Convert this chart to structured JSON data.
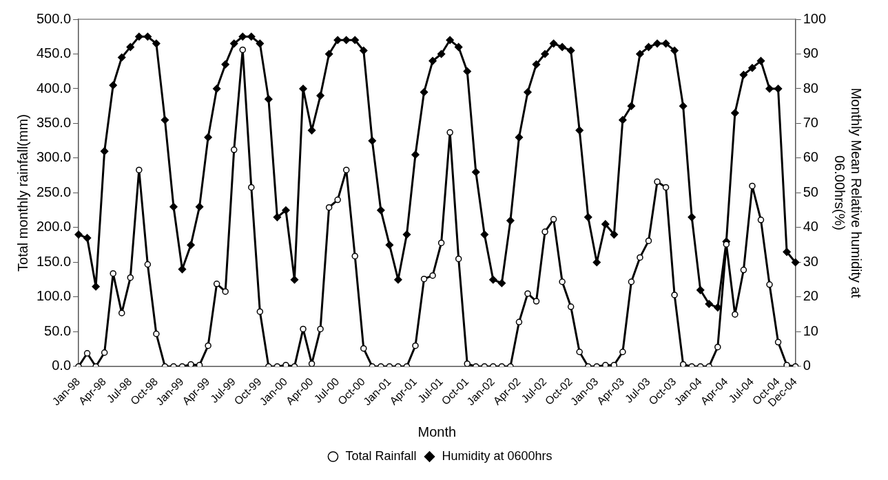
{
  "chart_data": {
    "type": "line",
    "xlabel": "Month",
    "ylabel": "Total monthly rainfall(mm)",
    "y2label": "Monthly Mean Relative humidity at\n06.00hrs(%)",
    "categories": [
      "Jan-98",
      null,
      null,
      "Apr-98",
      null,
      null,
      "Jul-98",
      null,
      null,
      "Oct-98",
      null,
      null,
      "Jan-99",
      null,
      null,
      "Apr-99",
      null,
      null,
      "Jul-99",
      null,
      null,
      "Oct-99",
      null,
      null,
      "Jan-00",
      null,
      null,
      "Apr-00",
      null,
      null,
      "Jul-00",
      null,
      null,
      "Oct-00",
      null,
      null,
      "Jan-01",
      null,
      null,
      "Apr-01",
      null,
      null,
      "Jul-01",
      null,
      null,
      "Oct-01",
      null,
      null,
      "Jan-02",
      null,
      null,
      "Apr-02",
      null,
      null,
      "Jul-02",
      null,
      null,
      "Oct-02",
      null,
      null,
      "Jan-03",
      null,
      null,
      "Apr-03",
      null,
      null,
      "Jul-03",
      null,
      null,
      "Oct-03",
      null,
      null,
      "Jan-04",
      null,
      null,
      "Apr-04",
      null,
      null,
      "Jul-04",
      null,
      null,
      "Oct-04",
      null,
      "Dec-04"
    ],
    "series": [
      {
        "name": "Total Rainfall",
        "color": "#000000",
        "marker": "circle",
        "values": [
          0,
          19,
          0,
          20,
          134,
          77,
          128,
          283,
          147,
          47,
          0,
          0,
          0,
          3,
          2,
          30,
          119,
          108,
          312,
          456,
          258,
          79,
          0,
          0,
          2,
          0,
          54,
          4,
          54,
          229,
          240,
          283,
          159,
          26,
          0,
          0,
          0,
          0,
          0,
          30,
          126,
          131,
          178,
          337,
          155,
          4,
          0,
          0,
          0,
          0,
          0,
          64,
          105,
          94,
          194,
          212,
          122,
          86,
          21,
          0,
          0,
          2,
          2,
          21,
          122,
          157,
          181,
          266,
          258,
          103,
          3,
          0,
          0,
          0,
          28,
          176,
          75,
          139,
          260,
          211,
          118,
          35,
          2,
          0
        ]
      },
      {
        "name": "Humidity at 0600hrs",
        "color": "#000000",
        "marker": "diamond",
        "axis": "y2",
        "values": [
          38,
          37,
          23,
          62,
          81,
          89,
          92,
          95,
          95,
          93,
          71,
          46,
          28,
          35,
          46,
          66,
          80,
          87,
          93,
          95,
          95,
          93,
          77,
          43,
          45,
          25,
          80,
          68,
          78,
          90,
          94,
          94,
          94,
          91,
          65,
          45,
          35,
          25,
          38,
          61,
          79,
          88,
          90,
          94,
          92,
          85,
          56,
          38,
          25,
          24,
          42,
          66,
          79,
          87,
          90,
          93,
          92,
          91,
          68,
          43,
          30,
          41,
          38,
          71,
          75,
          90,
          92,
          93,
          93,
          91,
          75,
          43,
          22,
          18,
          17,
          36,
          73,
          84,
          86,
          88,
          80,
          80,
          33,
          30
        ]
      }
    ],
    "ylim": [
      0,
      500
    ],
    "yticks": [
      {
        "value": 0,
        "label": "0.0"
      },
      {
        "value": 50,
        "label": "50.0"
      },
      {
        "value": 100,
        "label": "100.0"
      },
      {
        "value": 150,
        "label": "150.0"
      },
      {
        "value": 200,
        "label": "200.0"
      },
      {
        "value": 250,
        "label": "250.0"
      },
      {
        "value": 300,
        "label": "300.0"
      },
      {
        "value": 350,
        "label": "350.0"
      },
      {
        "value": 400,
        "label": "400.0"
      },
      {
        "value": 450,
        "label": "450.0"
      },
      {
        "value": 500,
        "label": "500.0"
      }
    ],
    "y2lim": [
      0,
      100
    ],
    "y2ticks": [
      0,
      10,
      20,
      30,
      40,
      50,
      60,
      70,
      80,
      90,
      100
    ],
    "grid": false,
    "legend": "bottom",
    "line_style": "solid"
  }
}
